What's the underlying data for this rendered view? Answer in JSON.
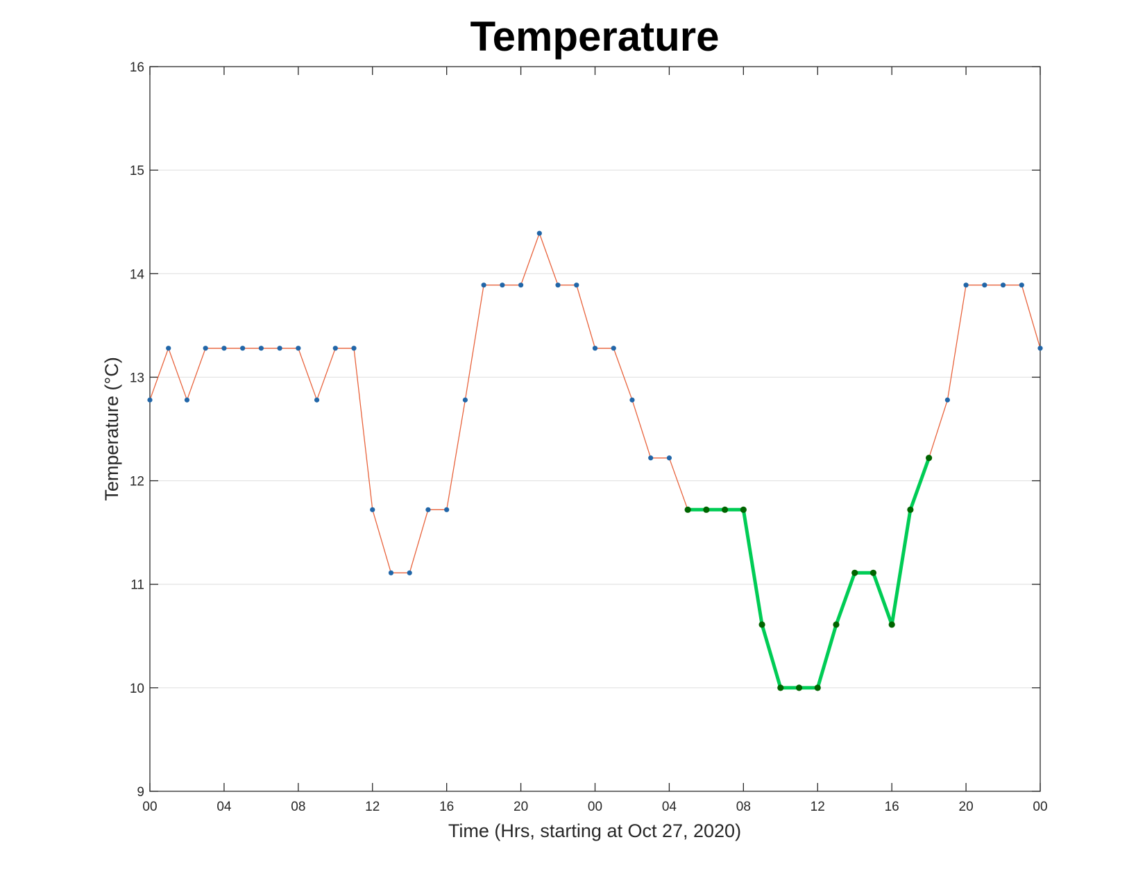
{
  "chart_data": {
    "type": "line",
    "title": "Temperature",
    "xlabel": "Time (Hrs, starting at Oct 27, 2020)",
    "ylabel": "Temperature (°C)",
    "xlim": [
      0,
      48
    ],
    "ylim": [
      9,
      16
    ],
    "grid": "horizontal",
    "x_tick_values": [
      0,
      4,
      8,
      12,
      16,
      20,
      24,
      28,
      32,
      36,
      40,
      44,
      48
    ],
    "x_tick_labels": [
      "00",
      "04",
      "08",
      "12",
      "16",
      "20",
      "00",
      "04",
      "08",
      "12",
      "16",
      "20",
      "00"
    ],
    "y_ticks": [
      9,
      10,
      11,
      12,
      13,
      14,
      15,
      16
    ],
    "series": [
      {
        "color": "#e8623b",
        "marker_color": "#2166a8",
        "x": [
          0,
          1,
          2,
          3,
          4,
          5,
          6,
          7,
          8,
          9,
          10,
          11,
          12,
          13,
          14,
          15,
          16,
          17,
          18,
          19,
          20,
          21,
          22,
          23,
          24,
          25,
          26,
          27,
          28,
          29,
          30,
          31,
          32,
          33,
          34,
          35,
          36,
          37,
          38,
          39,
          40,
          41,
          42,
          43,
          44,
          45,
          46,
          47,
          48
        ],
        "y": [
          12.78,
          13.28,
          12.78,
          13.28,
          13.28,
          13.28,
          13.28,
          13.28,
          13.28,
          12.78,
          13.28,
          13.28,
          11.72,
          11.11,
          11.11,
          11.72,
          11.72,
          12.78,
          13.89,
          13.89,
          13.89,
          14.39,
          13.89,
          13.89,
          13.28,
          13.28,
          12.78,
          12.22,
          12.22,
          11.72,
          11.72,
          11.72,
          11.72,
          10.61,
          10.0,
          10.0,
          10.0,
          10.61,
          11.11,
          11.11,
          10.61,
          11.72,
          12.22,
          12.78,
          13.89,
          13.89,
          13.89,
          13.89,
          13.28
        ]
      },
      {
        "color": "#00cc55",
        "marker_color": "#006400",
        "x": [
          29,
          30,
          31,
          32,
          33,
          34,
          35,
          36,
          37,
          38,
          39,
          40,
          41,
          42
        ],
        "y": [
          11.72,
          11.72,
          11.72,
          11.72,
          10.61,
          10.0,
          10.0,
          10.0,
          10.61,
          11.11,
          11.11,
          10.61,
          11.72,
          12.22
        ]
      }
    ]
  }
}
